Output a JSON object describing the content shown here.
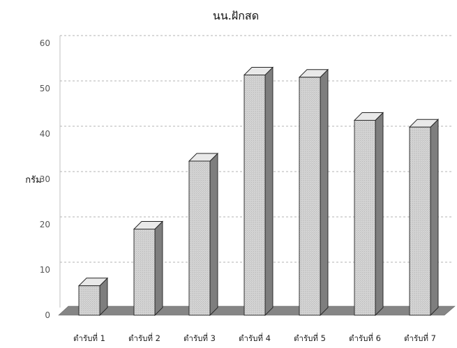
{
  "chart_data": {
    "type": "bar",
    "title": "นน.ฝักสด",
    "xlabel": "",
    "ylabel": "กรัม",
    "categories": [
      "ตำรับที่ 1",
      "ตำรับที่ 2",
      "ตำรับที่ 3",
      "ตำรับที่ 4",
      "ตำรับที่ 5",
      "ตำรับที่ 6",
      "ตำรับที่ 7"
    ],
    "values": [
      6.5,
      19,
      34,
      53,
      52.5,
      43,
      41.5
    ],
    "ylim": [
      0,
      60
    ],
    "yticks": [
      "0",
      "10",
      "20",
      "30",
      "40",
      "50",
      "60"
    ],
    "grid": true,
    "legend": "none",
    "style": "3d-bar",
    "colors": {
      "bar_front": "#d2d2d2",
      "bar_side": "#7e7e7e",
      "bar_top": "#e9e9e9",
      "floor": "#858585"
    }
  }
}
